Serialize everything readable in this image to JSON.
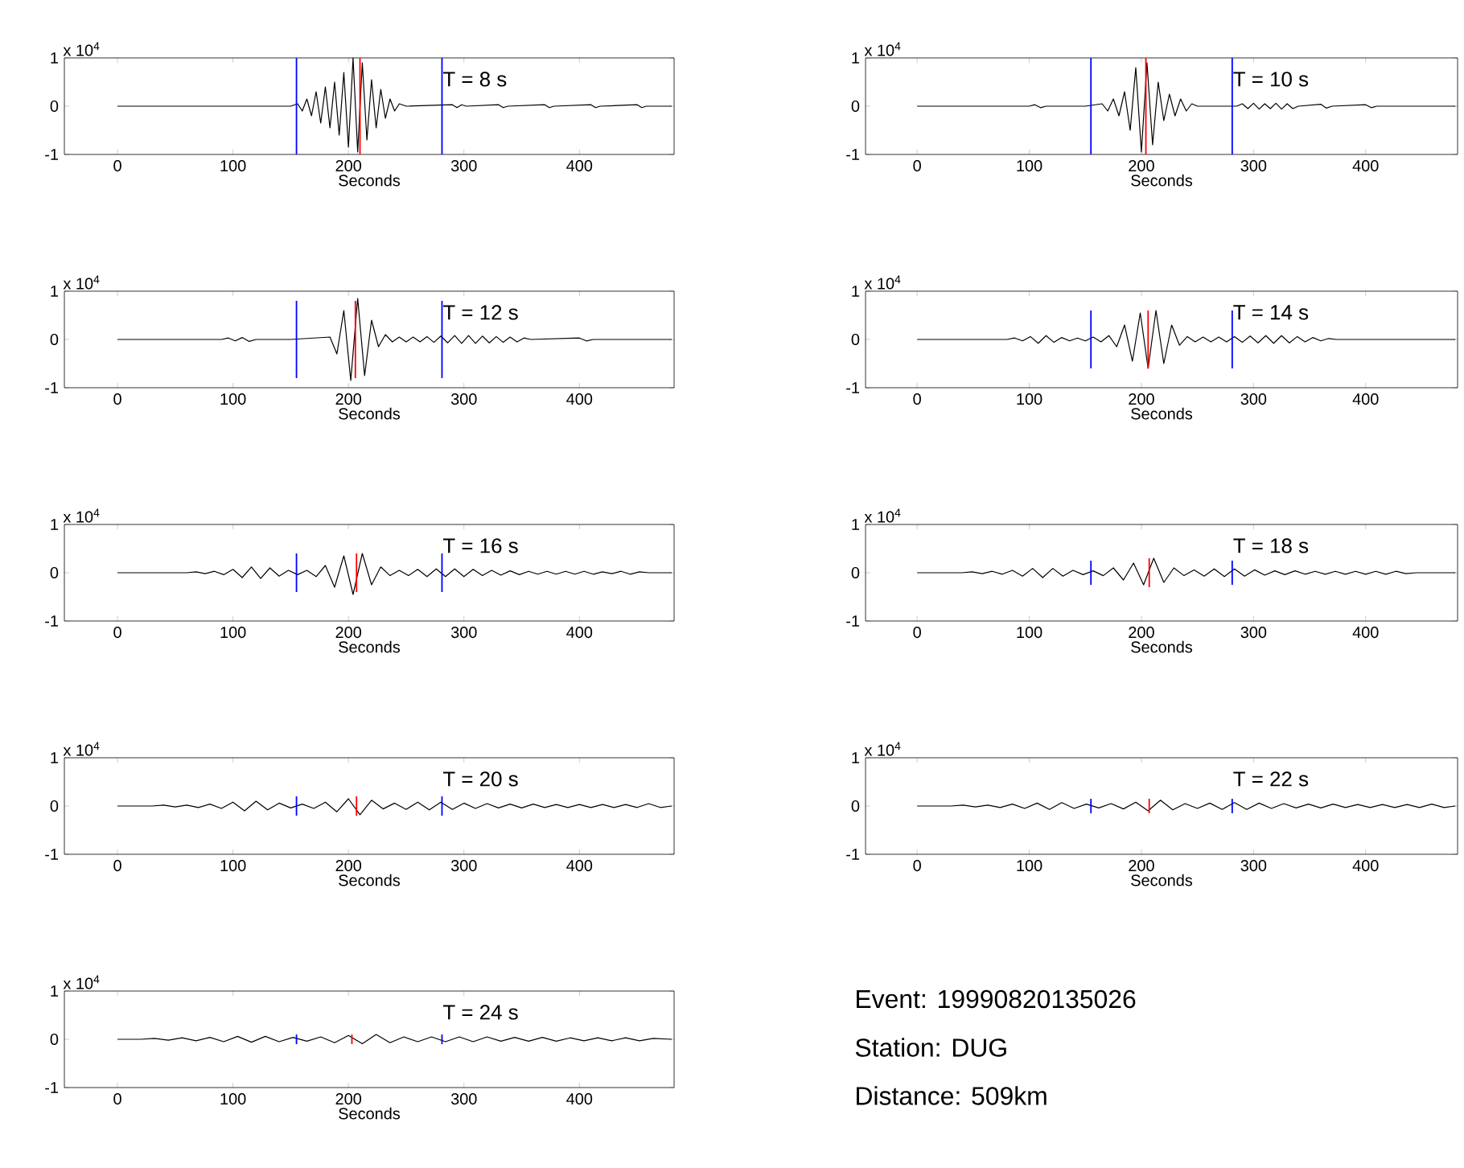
{
  "chart_data": [
    {
      "type": "line",
      "xlabel": "Seconds",
      "annotations": [
        "x 10$^{4}$",
        "T = 8 s"
      ],
      "xlim": [
        -46,
        482
      ],
      "ylim": [
        -1,
        1
      ],
      "xticks": [
        0,
        100,
        200,
        300,
        400
      ],
      "yticks": [
        -1,
        0,
        1
      ],
      "series": [
        {
          "color": "#000000",
          "x": [
            0,
            150,
            156,
            160,
            164,
            168,
            172,
            176,
            180,
            184,
            188,
            192,
            196,
            200,
            204,
            208,
            212,
            216,
            220,
            224,
            228,
            232,
            236,
            240,
            244,
            250,
            290,
            294,
            298,
            302,
            330,
            334,
            338,
            370,
            374,
            378,
            410,
            414,
            418,
            450,
            454,
            458,
            480
          ],
          "values": [
            0,
            0,
            0.05,
            -0.1,
            0.15,
            -0.2,
            0.3,
            -0.35,
            0.4,
            -0.45,
            0.5,
            -0.6,
            0.7,
            -0.85,
            1,
            -0.95,
            0.9,
            -0.7,
            0.55,
            -0.45,
            0.35,
            -0.25,
            0.15,
            -0.1,
            0.05,
            0,
            0.03,
            -0.03,
            0.03,
            0,
            0.03,
            -0.03,
            0,
            0.03,
            -0.03,
            0,
            0.03,
            -0.03,
            0,
            0.03,
            -0.03,
            0,
            0
          ]
        },
        {
          "color": "#0000ff",
          "x": [
            155,
            155
          ],
          "values": [
            -1,
            1
          ]
        },
        {
          "color": "#0000ff",
          "x": [
            281,
            281
          ],
          "values": [
            -1,
            1
          ]
        },
        {
          "color": "#ff0000",
          "x": [
            210,
            210
          ],
          "values": [
            -1,
            1
          ]
        }
      ]
    },
    {
      "type": "line",
      "xlabel": "Seconds",
      "annotations": [
        "x 10$^{4}$",
        "T = 10 s"
      ],
      "xlim": [
        -46,
        482
      ],
      "ylim": [
        -1,
        1
      ],
      "xticks": [
        0,
        100,
        200,
        300,
        400
      ],
      "yticks": [
        -1,
        0,
        1
      ],
      "series": [
        {
          "color": "#000000",
          "x": [
            0,
            100,
            105,
            110,
            115,
            150,
            165,
            170,
            175,
            180,
            185,
            190,
            195,
            200,
            205,
            210,
            215,
            220,
            225,
            230,
            235,
            240,
            245,
            250,
            285,
            290,
            295,
            300,
            305,
            310,
            315,
            320,
            325,
            330,
            335,
            340,
            360,
            365,
            370,
            400,
            405,
            410,
            480
          ],
          "values": [
            0,
            0,
            0.03,
            -0.03,
            0,
            0,
            0.05,
            -0.1,
            0.15,
            -0.2,
            0.3,
            -0.5,
            0.8,
            -0.95,
            0.9,
            -0.8,
            0.5,
            -0.3,
            0.25,
            -0.2,
            0.15,
            -0.1,
            0.05,
            0,
            0,
            0.05,
            -0.05,
            0.06,
            -0.06,
            0.05,
            -0.05,
            0.06,
            -0.06,
            0.05,
            -0.05,
            0,
            0.04,
            -0.04,
            0,
            0.03,
            -0.03,
            0,
            0
          ]
        },
        {
          "color": "#0000ff",
          "x": [
            155,
            155
          ],
          "values": [
            -1,
            1
          ]
        },
        {
          "color": "#0000ff",
          "x": [
            281,
            281
          ],
          "values": [
            -1,
            1
          ]
        },
        {
          "color": "#ff0000",
          "x": [
            204,
            204
          ],
          "values": [
            -1,
            1
          ]
        }
      ]
    },
    {
      "type": "line",
      "xlabel": "Seconds",
      "annotations": [
        "x 10$^{4}$",
        "T = 12 s"
      ],
      "xlim": [
        -46,
        482
      ],
      "ylim": [
        -1,
        1
      ],
      "xticks": [
        0,
        100,
        200,
        300,
        400
      ],
      "yticks": [
        -1,
        0,
        1
      ],
      "series": [
        {
          "color": "#000000",
          "x": [
            0,
            90,
            96,
            102,
            108,
            114,
            120,
            150,
            184,
            190,
            196,
            202,
            208,
            214,
            220,
            226,
            232,
            238,
            244,
            250,
            256,
            262,
            268,
            274,
            280,
            286,
            292,
            298,
            304,
            310,
            316,
            322,
            328,
            334,
            340,
            346,
            352,
            358,
            400,
            406,
            412,
            480
          ],
          "values": [
            0,
            0,
            0.03,
            -0.03,
            0.04,
            -0.04,
            0,
            0,
            0.05,
            -0.3,
            0.6,
            -0.85,
            0.85,
            -0.75,
            0.4,
            -0.15,
            0.1,
            -0.05,
            0.05,
            -0.05,
            0.05,
            -0.05,
            0.06,
            -0.06,
            0.07,
            -0.07,
            0.08,
            -0.08,
            0.08,
            -0.08,
            0.07,
            -0.07,
            0.06,
            -0.06,
            0.05,
            -0.05,
            0.03,
            0,
            0.03,
            -0.03,
            0,
            0
          ]
        },
        {
          "color": "#0000ff",
          "x": [
            155,
            155
          ],
          "values": [
            -0.8,
            0.8
          ]
        },
        {
          "color": "#0000ff",
          "x": [
            281,
            281
          ],
          "values": [
            -0.8,
            0.8
          ]
        },
        {
          "color": "#ff0000",
          "x": [
            206,
            206
          ],
          "values": [
            -0.8,
            0.8
          ]
        }
      ]
    },
    {
      "type": "line",
      "xlabel": "Seconds",
      "annotations": [
        "x 10$^{4}$",
        "T = 14 s"
      ],
      "xlim": [
        -46,
        482
      ],
      "ylim": [
        -1,
        1
      ],
      "xticks": [
        0,
        100,
        200,
        300,
        400
      ],
      "yticks": [
        -1,
        0,
        1
      ],
      "series": [
        {
          "color": "#000000",
          "x": [
            0,
            80,
            87,
            94,
            101,
            108,
            115,
            122,
            129,
            136,
            143,
            150,
            157,
            164,
            171,
            178,
            185,
            192,
            199,
            206,
            213,
            220,
            227,
            234,
            241,
            248,
            255,
            262,
            269,
            276,
            283,
            290,
            297,
            304,
            311,
            318,
            325,
            332,
            339,
            346,
            353,
            360,
            367,
            374,
            480
          ],
          "values": [
            0,
            0,
            0.03,
            -0.03,
            0.06,
            -0.08,
            0.08,
            -0.06,
            0.04,
            -0.03,
            0.03,
            -0.03,
            0.05,
            -0.05,
            0.08,
            -0.15,
            0.3,
            -0.45,
            0.55,
            -0.6,
            0.6,
            -0.5,
            0.3,
            -0.12,
            0.06,
            -0.05,
            0.05,
            -0.05,
            0.05,
            -0.05,
            0.06,
            -0.06,
            0.07,
            -0.07,
            0.08,
            -0.08,
            0.08,
            -0.07,
            0.06,
            -0.05,
            0.04,
            -0.03,
            0.02,
            0,
            0
          ]
        },
        {
          "color": "#0000ff",
          "x": [
            155,
            155
          ],
          "values": [
            -0.6,
            0.6
          ]
        },
        {
          "color": "#0000ff",
          "x": [
            281,
            281
          ],
          "values": [
            -0.6,
            0.6
          ]
        },
        {
          "color": "#ff0000",
          "x": [
            206,
            206
          ],
          "values": [
            -0.6,
            0.6
          ]
        }
      ]
    },
    {
      "type": "line",
      "xlabel": "Seconds",
      "annotations": [
        "x 10$^{4}$",
        "T = 16 s"
      ],
      "xlim": [
        -46,
        482
      ],
      "ylim": [
        -1,
        1
      ],
      "xticks": [
        0,
        100,
        200,
        300,
        400
      ],
      "yticks": [
        -1,
        0,
        1
      ],
      "series": [
        {
          "color": "#000000",
          "x": [
            0,
            60,
            68,
            76,
            84,
            92,
            100,
            108,
            116,
            124,
            132,
            140,
            148,
            156,
            164,
            172,
            180,
            188,
            196,
            204,
            212,
            220,
            228,
            236,
            244,
            252,
            260,
            268,
            276,
            284,
            292,
            300,
            308,
            316,
            324,
            332,
            340,
            348,
            356,
            364,
            372,
            380,
            388,
            396,
            404,
            412,
            420,
            428,
            436,
            444,
            452,
            460,
            480
          ],
          "values": [
            0,
            0,
            0.02,
            -0.02,
            0.03,
            -0.04,
            0.07,
            -0.1,
            0.12,
            -0.12,
            0.1,
            -0.07,
            0.05,
            -0.04,
            0.05,
            -0.08,
            0.15,
            -0.3,
            0.35,
            -0.45,
            0.4,
            -0.25,
            0.12,
            -0.06,
            0.05,
            -0.06,
            0.07,
            -0.08,
            0.08,
            -0.08,
            0.08,
            -0.08,
            0.07,
            -0.06,
            0.05,
            -0.05,
            0.04,
            -0.04,
            0.03,
            -0.03,
            0.03,
            -0.03,
            0.03,
            -0.03,
            0.03,
            -0.03,
            0.02,
            -0.02,
            0.03,
            -0.03,
            0.02,
            0,
            0
          ]
        },
        {
          "color": "#0000ff",
          "x": [
            155,
            155
          ],
          "values": [
            -0.4,
            0.4
          ]
        },
        {
          "color": "#0000ff",
          "x": [
            281,
            281
          ],
          "values": [
            -0.4,
            0.4
          ]
        },
        {
          "color": "#ff0000",
          "x": [
            207,
            207
          ],
          "values": [
            -0.4,
            0.4
          ]
        }
      ]
    },
    {
      "type": "line",
      "xlabel": "Seconds",
      "annotations": [
        "x 10$^{4}$",
        "T = 18 s"
      ],
      "xlim": [
        -46,
        482
      ],
      "ylim": [
        -1,
        1
      ],
      "xticks": [
        0,
        100,
        200,
        300,
        400
      ],
      "yticks": [
        -1,
        0,
        1
      ],
      "series": [
        {
          "color": "#000000",
          "x": [
            0,
            40,
            49,
            58,
            67,
            76,
            85,
            94,
            103,
            112,
            121,
            130,
            139,
            148,
            157,
            166,
            175,
            184,
            193,
            202,
            211,
            220,
            229,
            238,
            247,
            256,
            265,
            274,
            283,
            292,
            301,
            310,
            319,
            328,
            337,
            346,
            355,
            364,
            373,
            382,
            391,
            400,
            409,
            418,
            427,
            436,
            445,
            480
          ],
          "values": [
            0,
            0,
            0.02,
            -0.02,
            0.03,
            -0.03,
            0.05,
            -0.07,
            0.09,
            -0.1,
            0.09,
            -0.07,
            0.05,
            -0.04,
            0.04,
            -0.06,
            0.1,
            -0.15,
            0.2,
            -0.25,
            0.3,
            -0.2,
            0.1,
            -0.06,
            0.06,
            -0.07,
            0.08,
            -0.08,
            0.08,
            -0.07,
            0.06,
            -0.05,
            0.04,
            -0.04,
            0.04,
            -0.03,
            0.03,
            -0.03,
            0.03,
            -0.03,
            0.03,
            -0.03,
            0.03,
            -0.03,
            0.03,
            -0.02,
            0,
            0
          ]
        },
        {
          "color": "#0000ff",
          "x": [
            155,
            155
          ],
          "values": [
            -0.25,
            0.25
          ]
        },
        {
          "color": "#0000ff",
          "x": [
            281,
            281
          ],
          "values": [
            -0.25,
            0.25
          ]
        },
        {
          "color": "#ff0000",
          "x": [
            207,
            207
          ],
          "values": [
            -0.3,
            0.3
          ]
        }
      ]
    },
    {
      "type": "line",
      "xlabel": "Seconds",
      "annotations": [
        "x 10$^{4}$",
        "T = 20 s"
      ],
      "xlim": [
        -46,
        482
      ],
      "ylim": [
        -1,
        1
      ],
      "xticks": [
        0,
        100,
        200,
        300,
        400
      ],
      "yticks": [
        -1,
        0,
        1
      ],
      "series": [
        {
          "color": "#000000",
          "x": [
            0,
            30,
            40,
            50,
            60,
            70,
            80,
            90,
            100,
            110,
            120,
            130,
            140,
            150,
            160,
            170,
            180,
            190,
            200,
            210,
            220,
            230,
            240,
            250,
            260,
            270,
            280,
            290,
            300,
            310,
            320,
            330,
            340,
            350,
            360,
            370,
            380,
            390,
            400,
            410,
            420,
            430,
            440,
            450,
            460,
            470,
            480
          ],
          "values": [
            0,
            0,
            0.02,
            -0.02,
            0.02,
            -0.03,
            0.04,
            -0.05,
            0.08,
            -0.1,
            0.1,
            -0.08,
            0.06,
            -0.04,
            0.04,
            -0.05,
            0.08,
            -0.12,
            0.15,
            -0.18,
            0.12,
            -0.06,
            0.06,
            -0.07,
            0.08,
            -0.08,
            0.08,
            -0.07,
            0.06,
            -0.05,
            0.05,
            -0.04,
            0.04,
            -0.04,
            0.04,
            -0.03,
            0.03,
            -0.03,
            0.03,
            -0.03,
            0.03,
            -0.03,
            0.03,
            -0.03,
            0.05,
            -0.03,
            0
          ]
        },
        {
          "color": "#0000ff",
          "x": [
            155,
            155
          ],
          "values": [
            -0.2,
            0.2
          ]
        },
        {
          "color": "#0000ff",
          "x": [
            281,
            281
          ],
          "values": [
            -0.2,
            0.2
          ]
        },
        {
          "color": "#ff0000",
          "x": [
            207,
            207
          ],
          "values": [
            -0.2,
            0.2
          ]
        }
      ]
    },
    {
      "type": "line",
      "xlabel": "Seconds",
      "annotations": [
        "x 10$^{4}$",
        "T = 22 s"
      ],
      "xlim": [
        -46,
        482
      ],
      "ylim": [
        -1,
        1
      ],
      "xticks": [
        0,
        100,
        200,
        300,
        400
      ],
      "yticks": [
        -1,
        0,
        1
      ],
      "series": [
        {
          "color": "#000000",
          "x": [
            0,
            30,
            41,
            52,
            63,
            74,
            85,
            96,
            107,
            118,
            129,
            140,
            151,
            162,
            173,
            184,
            195,
            206,
            217,
            228,
            239,
            250,
            261,
            272,
            283,
            294,
            305,
            316,
            327,
            338,
            349,
            360,
            371,
            382,
            393,
            404,
            415,
            426,
            437,
            448,
            459,
            470,
            480
          ],
          "values": [
            0,
            0,
            0.02,
            -0.02,
            0.02,
            -0.03,
            0.04,
            -0.05,
            0.06,
            -0.07,
            0.07,
            -0.05,
            0.04,
            -0.04,
            0.05,
            -0.06,
            0.08,
            -0.1,
            0.12,
            -0.08,
            0.05,
            -0.05,
            0.06,
            -0.07,
            0.07,
            -0.07,
            0.06,
            -0.05,
            0.05,
            -0.04,
            0.04,
            -0.04,
            0.04,
            -0.03,
            0.03,
            -0.03,
            0.03,
            -0.03,
            0.03,
            -0.03,
            0.04,
            -0.03,
            0
          ]
        },
        {
          "color": "#0000ff",
          "x": [
            155,
            155
          ],
          "values": [
            -0.15,
            0.15
          ]
        },
        {
          "color": "#0000ff",
          "x": [
            281,
            281
          ],
          "values": [
            -0.15,
            0.15
          ]
        },
        {
          "color": "#ff0000",
          "x": [
            207,
            207
          ],
          "values": [
            -0.15,
            0.15
          ]
        }
      ]
    },
    {
      "type": "line",
      "xlabel": "Seconds",
      "annotations": [
        "x 10$^{4}$",
        "T = 24 s"
      ],
      "xlim": [
        -46,
        482
      ],
      "ylim": [
        -1,
        1
      ],
      "xticks": [
        0,
        100,
        200,
        300,
        400
      ],
      "yticks": [
        -1,
        0,
        1
      ],
      "series": [
        {
          "color": "#000000",
          "x": [
            0,
            20,
            32,
            44,
            56,
            68,
            80,
            92,
            104,
            116,
            128,
            140,
            152,
            164,
            176,
            188,
            200,
            212,
            224,
            236,
            248,
            260,
            272,
            284,
            296,
            308,
            320,
            332,
            344,
            356,
            368,
            380,
            392,
            404,
            416,
            428,
            440,
            452,
            464,
            480
          ],
          "values": [
            0,
            0,
            0.02,
            -0.02,
            0.03,
            -0.03,
            0.04,
            -0.05,
            0.06,
            -0.06,
            0.06,
            -0.05,
            0.04,
            -0.04,
            0.05,
            -0.07,
            0.08,
            -0.09,
            0.1,
            -0.07,
            0.05,
            -0.05,
            0.05,
            -0.05,
            0.05,
            -0.05,
            0.05,
            -0.04,
            0.04,
            -0.04,
            0.04,
            -0.04,
            0.03,
            -0.03,
            0.03,
            -0.03,
            0.03,
            -0.03,
            0.02,
            0
          ]
        },
        {
          "color": "#0000ff",
          "x": [
            155,
            155
          ],
          "values": [
            -0.1,
            0.1
          ]
        },
        {
          "color": "#0000ff",
          "x": [
            281,
            281
          ],
          "values": [
            -0.1,
            0.1
          ]
        },
        {
          "color": "#ff0000",
          "x": [
            203,
            203
          ],
          "values": [
            -0.1,
            0.1
          ]
        }
      ]
    },
    {
      "type": "other",
      "annotations": [
        "Event: 19990820135026",
        "Station: DUG",
        "Distance: 509km"
      ]
    }
  ]
}
